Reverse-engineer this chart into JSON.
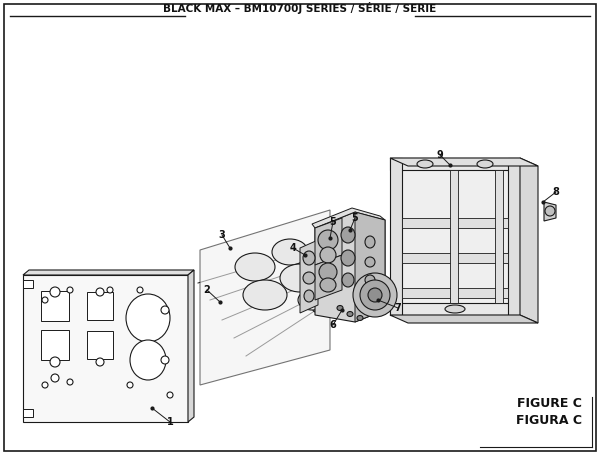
{
  "title": "BLACK MAX – BM10700J SERIES / SÉRIE / SERIE",
  "figure_label": "FIGURE C",
  "figura_label": "FIGURA C",
  "bg_color": "#ffffff",
  "border_color": "#1a1a1a",
  "text_color": "#111111",
  "title_fontsize": 7.5,
  "label_fontsize": 7.0,
  "figsize": [
    6.0,
    4.55
  ],
  "dpi": 100
}
